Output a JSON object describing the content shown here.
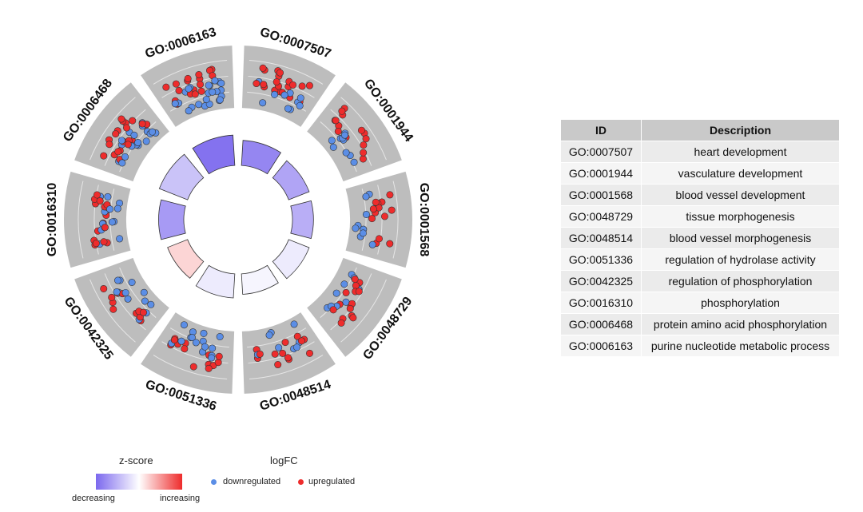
{
  "chart_data": {
    "type": "circular",
    "terms": [
      {
        "id": "GO:0007507",
        "z": -1.2,
        "count": 30
      },
      {
        "id": "GO:0001944",
        "z": -0.9,
        "count": 24
      },
      {
        "id": "GO:0001568",
        "z": -0.8,
        "count": 22
      },
      {
        "id": "GO:0048729",
        "z": -0.2,
        "count": 24
      },
      {
        "id": "GO:0048514",
        "z": -0.1,
        "count": 21
      },
      {
        "id": "GO:0051336",
        "z": -0.2,
        "count": 28
      },
      {
        "id": "GO:0042325",
        "z": 0.3,
        "count": 23
      },
      {
        "id": "GO:0016310",
        "z": -1.0,
        "count": 30
      },
      {
        "id": "GO:0006468",
        "z": -0.6,
        "count": 40
      },
      {
        "id": "GO:0006163",
        "z": -1.4,
        "count": 40
      }
    ],
    "z_colors": {
      "decreasing": "#7b68ee",
      "neutral": "#ffffff",
      "increasing": "#ee2c2c"
    },
    "point_colors": {
      "downregulated": "#5b8ee6",
      "upregulated": "#ee2c2c"
    },
    "background": "#bdbdbd"
  },
  "table": {
    "headers": [
      "ID",
      "Description"
    ],
    "rows": [
      [
        "GO:0007507",
        "heart development"
      ],
      [
        "GO:0001944",
        "vasculature development"
      ],
      [
        "GO:0001568",
        "blood vessel development"
      ],
      [
        "GO:0048729",
        "tissue morphogenesis"
      ],
      [
        "GO:0048514",
        "blood vessel morphogenesis"
      ],
      [
        "GO:0051336",
        "regulation of hydrolase activity"
      ],
      [
        "GO:0042325",
        "regulation of phosphorylation"
      ],
      [
        "GO:0016310",
        "phosphorylation"
      ],
      [
        "GO:0006468",
        "protein amino acid phosphorylation"
      ],
      [
        "GO:0006163",
        "purine nucleotide metabolic process"
      ]
    ]
  },
  "legend": {
    "zscore_title": "z-score",
    "zscore_low": "decreasing",
    "zscore_high": "increasing",
    "logfc_title": "logFC",
    "down_label": "downregulated",
    "up_label": "upregulated"
  }
}
